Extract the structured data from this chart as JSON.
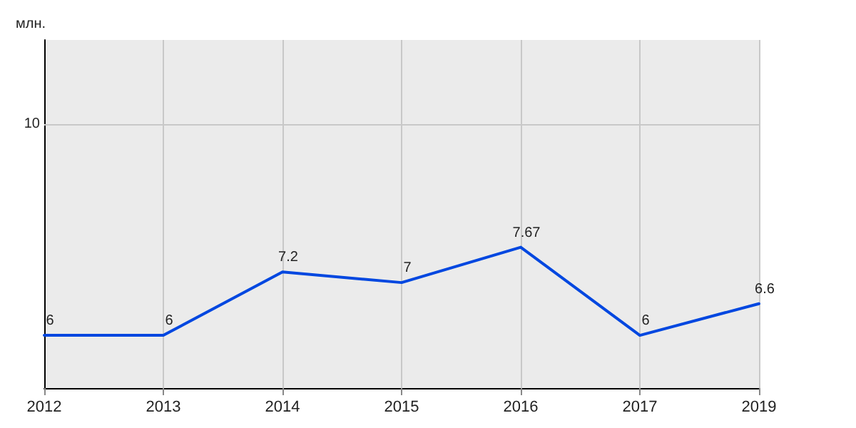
{
  "chart_data": {
    "type": "line",
    "ylabel": "млн.",
    "categories": [
      "2012",
      "2013",
      "2014",
      "2015",
      "2016",
      "2017",
      "2019"
    ],
    "series": [
      {
        "color": "#0047e0",
        "values": [
          6,
          6,
          7.2,
          7,
          7.67,
          6,
          6.6
        ]
      }
    ],
    "ylim": [
      5,
      11.6
    ],
    "grid": "x",
    "data_labels": true,
    "marker": "none",
    "line_style": "solid",
    "ref_lines": [
      {
        "axis": "y",
        "value": 10,
        "label": "10",
        "color": "#c8c8c8",
        "line_style": "solid"
      }
    ]
  }
}
